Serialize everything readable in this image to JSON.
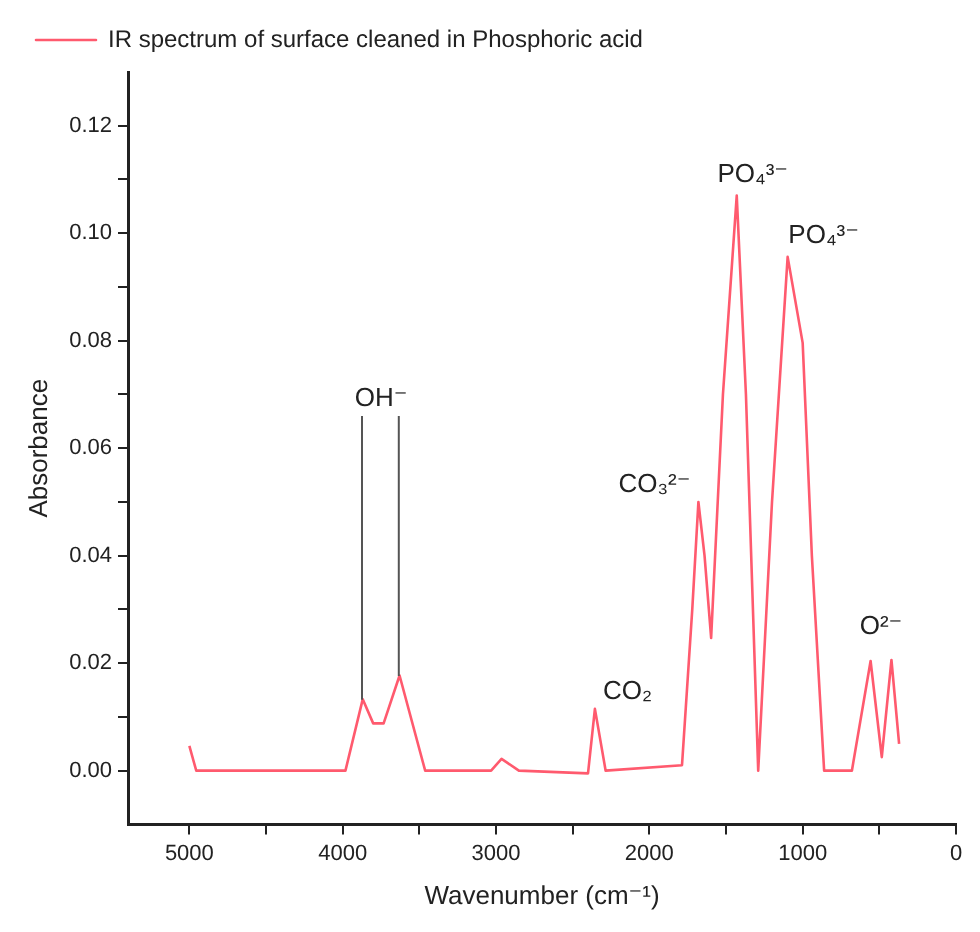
{
  "chart_data": {
    "type": "line",
    "xlabel": "Wavenumber (cm⁻¹)",
    "ylabel": "Absorbance",
    "xlim": [
      5400,
      0
    ],
    "xticks": [
      5000,
      {
        "value": 4500,
        "label": null
      },
      4000,
      {
        "value": 3500,
        "label": null
      },
      3000,
      {
        "value": 2500,
        "label": null
      },
      2000,
      {
        "value": 1500,
        "label": null
      },
      1000,
      {
        "value": 500,
        "label": null
      },
      0
    ],
    "ylim": [
      -0.01,
      0.13
    ],
    "yticks": [
      {
        "value": 0,
        "label": "0.00"
      },
      {
        "value": 0.01,
        "label": null
      },
      {
        "value": 0.02,
        "label": "0.02"
      },
      {
        "value": 0.03,
        "label": null
      },
      {
        "value": 0.04,
        "label": "0.04"
      },
      {
        "value": 0.05,
        "label": null
      },
      {
        "value": 0.06,
        "label": "0.06"
      },
      {
        "value": 0.07,
        "label": null
      },
      {
        "value": 0.08,
        "label": "0.08"
      },
      {
        "value": 0.09,
        "label": null
      },
      {
        "value": 0.1,
        "label": "0.10"
      },
      {
        "value": 0.11,
        "label": null
      },
      {
        "value": 0.12,
        "label": "0.12"
      }
    ],
    "grid": false,
    "legend": "top left",
    "marker": "none",
    "line_style": "solid",
    "series": [
      {
        "name": "IR spectrum of surface cleaned in Phosphoric acid",
        "color": "#ff5a6e",
        "x": [
          5000,
          4955,
          3982,
          3869,
          3801,
          3733,
          3629,
          3462,
          3032,
          2964,
          2851,
          2400,
          2355,
          2285,
          1787,
          1720,
          1680,
          1640,
          1597,
          1520,
          1430,
          1370,
          1290,
          1200,
          1098,
          1000,
          940,
          860,
          679,
          557,
          484,
          421,
          371
        ],
        "values": [
          0.0046,
          0,
          0,
          0.0133,
          0.0088,
          0.0088,
          0.0177,
          0,
          0,
          0.0022,
          0,
          -0.0005,
          0.0115,
          0,
          0.001,
          0.03,
          0.05,
          0.04,
          0.0247,
          0.07,
          0.107,
          0.07,
          0,
          0.05,
          0.0956,
          0.0796,
          0.04,
          0,
          0,
          0.0204,
          0.0025,
          0.0206,
          0.005
        ]
      }
    ],
    "annotations": [
      {
        "text": "OH⁻",
        "x": 3629,
        "y": 0.0177
      },
      {
        "text": "CO₃²⁻",
        "x": 1680,
        "y": 0.05
      },
      {
        "text": "CO₂",
        "x": 2355,
        "y": 0.0115
      },
      {
        "text": "PO₄³⁻",
        "x": 1430,
        "y": 0.107
      },
      {
        "text": "PO₄³⁻",
        "x": 1098,
        "y": 0.0956
      },
      {
        "text": "O²⁻",
        "x": 557,
        "y": 0.0204
      }
    ]
  }
}
